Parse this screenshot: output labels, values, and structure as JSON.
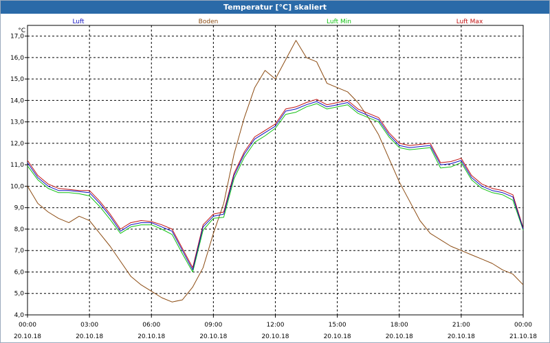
{
  "title": "Temperatur [°C] skaliert",
  "chart_data": {
    "type": "line",
    "unit_label": "°C",
    "ylim": [
      4.0,
      17.5
    ],
    "y_ticks": [
      "17,0",
      "16,0",
      "15,0",
      "14,0",
      "13,0",
      "12,0",
      "11,0",
      "10,0",
      "9,0",
      "8,0",
      "7,0",
      "6,0",
      "5,0",
      "4,0"
    ],
    "y_tick_values": [
      17,
      16,
      15,
      14,
      13,
      12,
      11,
      10,
      9,
      8,
      7,
      6,
      5,
      4
    ],
    "x_range_hours": [
      0,
      24
    ],
    "x_tick_hours": [
      0,
      3,
      6,
      9,
      12,
      15,
      18,
      21,
      24
    ],
    "x_ticks": [
      {
        "time": "00:00",
        "date": "20.10.18"
      },
      {
        "time": "03:00",
        "date": "20.10.18"
      },
      {
        "time": "06:00",
        "date": "20.10.18"
      },
      {
        "time": "09:00",
        "date": "20.10.18"
      },
      {
        "time": "12:00",
        "date": "20.10.18"
      },
      {
        "time": "15:00",
        "date": "20.10.18"
      },
      {
        "time": "18:00",
        "date": "20.10.18"
      },
      {
        "time": "21:00",
        "date": "20.10.18"
      },
      {
        "time": "00:00",
        "date": "21.10.18"
      }
    ],
    "grid": true,
    "series": [
      {
        "name": "Luft",
        "color": "#1010c0",
        "x": [
          0,
          0.5,
          1,
          1.5,
          2,
          2.5,
          3,
          3.5,
          4,
          4.5,
          5,
          5.5,
          6,
          6.5,
          7,
          7.5,
          8,
          8.5,
          9,
          9.5,
          10,
          10.5,
          11,
          11.5,
          12,
          12.5,
          13,
          13.5,
          14,
          14.5,
          15,
          15.5,
          16,
          16.5,
          17,
          17.5,
          18,
          18.5,
          19,
          19.5,
          20,
          20.5,
          21,
          21.5,
          22,
          22.5,
          23,
          23.5,
          24
        ],
        "y": [
          11.1,
          10.4,
          10.0,
          9.8,
          9.8,
          9.75,
          9.7,
          9.2,
          8.6,
          7.9,
          8.2,
          8.3,
          8.3,
          8.1,
          7.9,
          7.0,
          6.1,
          8.1,
          8.6,
          8.7,
          10.5,
          11.5,
          12.2,
          12.5,
          12.8,
          13.5,
          13.6,
          13.8,
          13.95,
          13.7,
          13.8,
          13.9,
          13.5,
          13.3,
          13.1,
          12.4,
          11.9,
          11.8,
          11.85,
          11.9,
          11.0,
          11.05,
          11.2,
          10.4,
          10.0,
          9.8,
          9.7,
          9.5,
          8.0
        ]
      },
      {
        "name": "Boden",
        "color": "#8b4a10",
        "x": [
          0,
          0.5,
          1,
          1.5,
          2,
          2.5,
          3,
          3.5,
          4,
          4.5,
          5,
          5.5,
          6,
          6.5,
          7,
          7.5,
          8,
          8.5,
          9,
          9.5,
          10,
          10.5,
          11,
          11.5,
          12,
          12.5,
          13,
          13.5,
          14,
          14.5,
          15,
          15.5,
          16,
          16.5,
          17,
          17.5,
          18,
          18.5,
          19,
          19.5,
          20,
          20.5,
          21,
          21.5,
          22,
          22.5,
          23,
          23.5,
          24
        ],
        "y": [
          10.0,
          9.2,
          8.8,
          8.5,
          8.3,
          8.6,
          8.4,
          7.8,
          7.2,
          6.5,
          5.8,
          5.4,
          5.1,
          4.8,
          4.6,
          4.7,
          5.3,
          6.2,
          7.8,
          9.2,
          11.5,
          13.2,
          14.6,
          15.4,
          15.0,
          15.9,
          16.8,
          16.0,
          15.8,
          14.8,
          14.6,
          14.4,
          13.9,
          13.2,
          12.4,
          11.3,
          10.2,
          9.3,
          8.4,
          7.8,
          7.5,
          7.2,
          7.0,
          6.8,
          6.6,
          6.4,
          6.1,
          5.9,
          5.4
        ]
      },
      {
        "name": "Luft Min",
        "color": "#10c010",
        "x": [
          0,
          0.5,
          1,
          1.5,
          2,
          2.5,
          3,
          3.5,
          4,
          4.5,
          5,
          5.5,
          6,
          6.5,
          7,
          7.5,
          8,
          8.5,
          9,
          9.5,
          10,
          10.5,
          11,
          11.5,
          12,
          12.5,
          13,
          13.5,
          14,
          14.5,
          15,
          15.5,
          16,
          16.5,
          17,
          17.5,
          18,
          18.5,
          19,
          19.5,
          20,
          20.5,
          21,
          21.5,
          22,
          22.5,
          23,
          23.5,
          24
        ],
        "y": [
          10.95,
          10.3,
          9.9,
          9.7,
          9.7,
          9.65,
          9.55,
          9.05,
          8.45,
          7.8,
          8.1,
          8.2,
          8.2,
          8.0,
          7.75,
          6.85,
          6.0,
          7.95,
          8.5,
          8.55,
          10.35,
          11.35,
          12.05,
          12.35,
          12.7,
          13.35,
          13.45,
          13.7,
          13.85,
          13.6,
          13.7,
          13.8,
          13.4,
          13.2,
          13.0,
          12.3,
          11.8,
          11.7,
          11.75,
          11.8,
          10.85,
          10.9,
          11.1,
          10.3,
          9.9,
          9.7,
          9.6,
          9.35,
          7.95
        ]
      },
      {
        "name": "Luft Max",
        "color": "#c01010",
        "x": [
          0,
          0.5,
          1,
          1.5,
          2,
          2.5,
          3,
          3.5,
          4,
          4.5,
          5,
          5.5,
          6,
          6.5,
          7,
          7.5,
          8,
          8.5,
          9,
          9.5,
          10,
          10.5,
          11,
          11.5,
          12,
          12.5,
          13,
          13.5,
          14,
          14.5,
          15,
          15.5,
          16,
          16.5,
          17,
          17.5,
          18,
          18.5,
          19,
          19.5,
          20,
          20.5,
          21,
          21.5,
          22,
          22.5,
          23,
          23.5,
          24
        ],
        "y": [
          11.2,
          10.5,
          10.1,
          9.9,
          9.85,
          9.8,
          9.8,
          9.3,
          8.7,
          8.0,
          8.3,
          8.4,
          8.35,
          8.2,
          8.0,
          7.1,
          6.2,
          8.2,
          8.7,
          8.8,
          10.6,
          11.6,
          12.3,
          12.6,
          12.9,
          13.6,
          13.7,
          13.9,
          14.05,
          13.8,
          13.9,
          14.0,
          13.6,
          13.4,
          13.2,
          12.5,
          12.0,
          11.9,
          11.95,
          12.0,
          11.1,
          11.15,
          11.3,
          10.5,
          10.1,
          9.9,
          9.8,
          9.6,
          8.05
        ]
      }
    ]
  }
}
